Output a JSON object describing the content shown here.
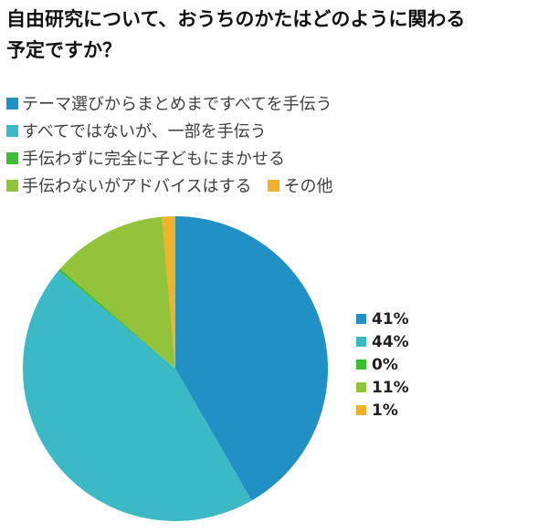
{
  "title": {
    "line1": "自由研究について、おうちのかたはどのように関わる",
    "line2": "予定ですか？"
  },
  "chart_data": {
    "type": "pie",
    "title": "自由研究について、おうちのかたはどのように関わる予定ですか？",
    "unit": "%",
    "series": [
      {
        "label": "テーマ選びからまとめまですべてを手伝う",
        "value": 41,
        "percent_label": "41%",
        "color": "#2191c5"
      },
      {
        "label": "すべてではないが、一部を手伝う",
        "value": 44,
        "percent_label": "44%",
        "color": "#3bb9c4"
      },
      {
        "label": "手伝わずに完全に子どもにまかせる",
        "value": 0,
        "percent_label": "0%",
        "color": "#3cbd33"
      },
      {
        "label": "手伝わないがアドバイスはする",
        "value": 11,
        "percent_label": "11%",
        "color": "#92c33a"
      },
      {
        "label": "その他",
        "value": 1,
        "percent_label": "1%",
        "color": "#efb32b"
      }
    ],
    "start_angle_deg": -90,
    "direction": "clockwise",
    "render_degrees": [
      150,
      160,
      1,
      44,
      5
    ],
    "legend_position": "top-left",
    "value_legend_position": "right"
  },
  "colors": {
    "background": "#ffffff",
    "title_text": "#111111",
    "legend_text": "#3f3f3f",
    "percent_text": "#1f1f1f"
  }
}
